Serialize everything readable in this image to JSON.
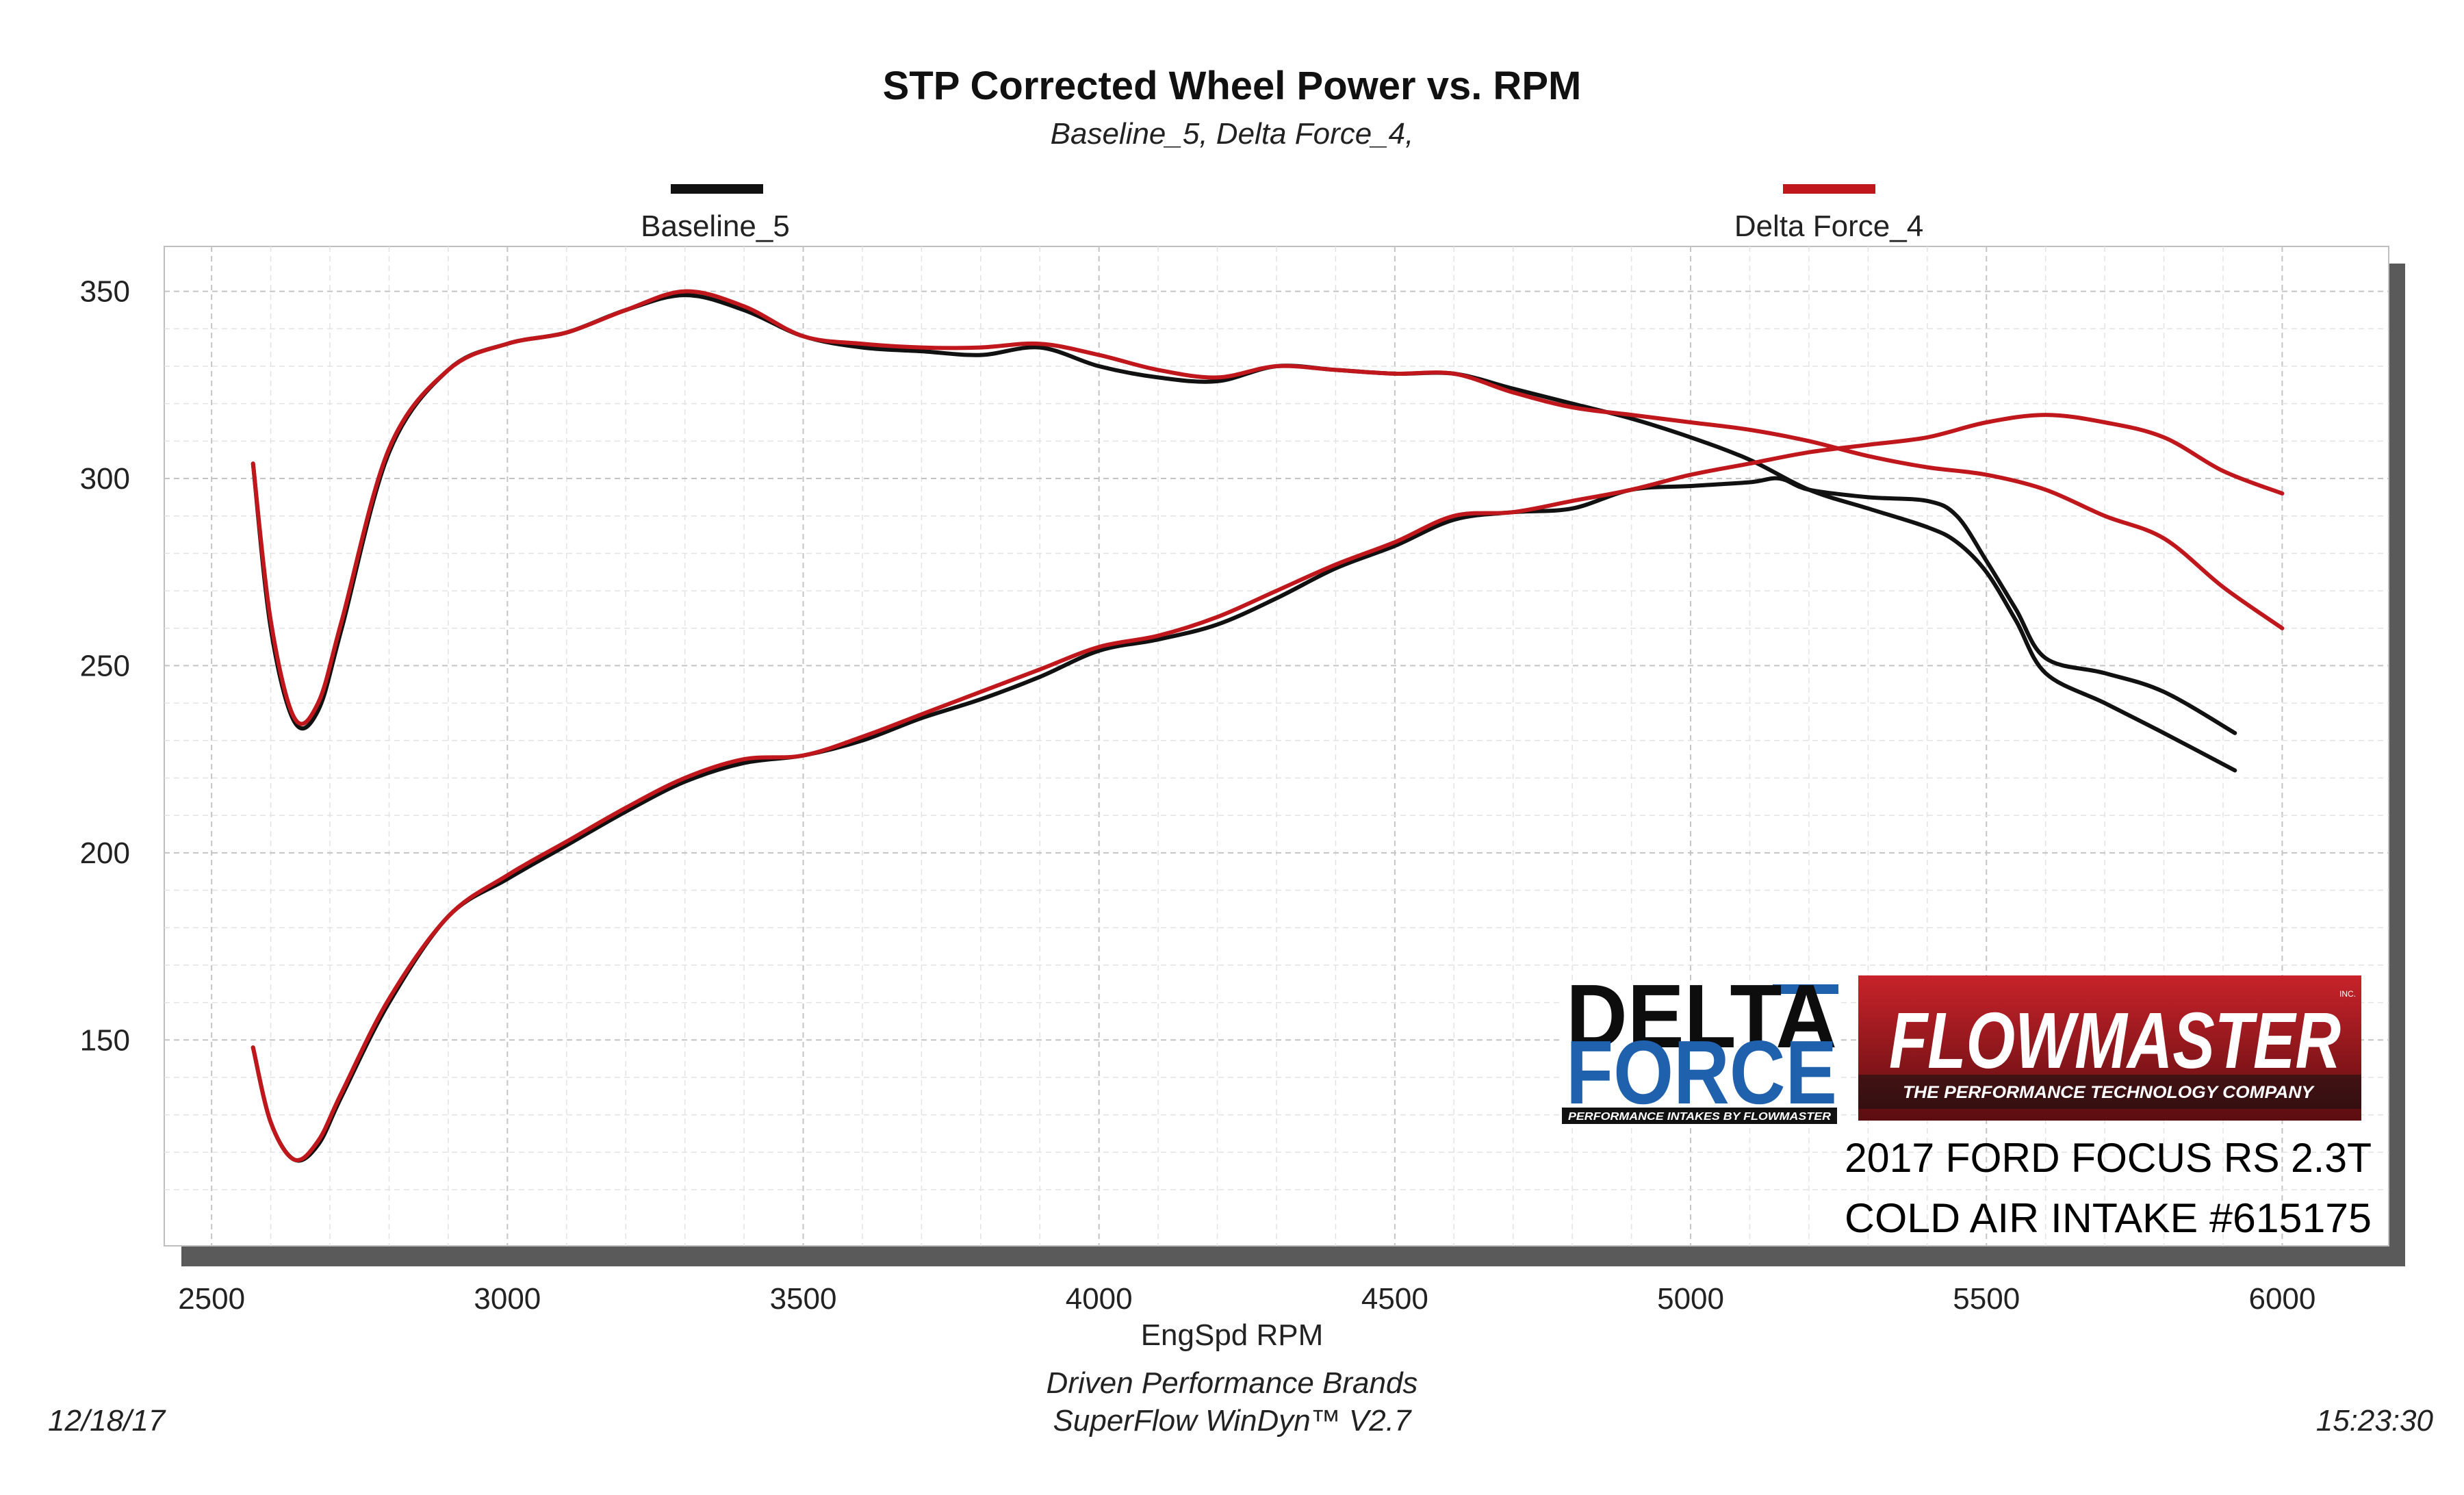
{
  "chart_data": {
    "type": "line",
    "title": "STP Corrected Wheel Power vs. RPM",
    "subtitle": "Baseline_5, Delta Force_4,",
    "xlabel": "EngSpd  RPM",
    "ylabel": "",
    "xlim": [
      2500,
      6000
    ],
    "ylim": [
      100,
      350
    ],
    "xticks": [
      "2500",
      "3000",
      "3500",
      "4000",
      "4500",
      "5000",
      "5500",
      "6000"
    ],
    "yticks": [
      "150",
      "200",
      "250",
      "300",
      "350"
    ],
    "grid": true,
    "legend_position": "top",
    "colors": {
      "Baseline_5": "#111111",
      "Delta Force_4": "#c0171d"
    },
    "series": [
      {
        "name": "Baseline_5",
        "curve": "power-rising",
        "color": "#111111",
        "x": [
          2570,
          2600,
          2640,
          2680,
          2720,
          2800,
          2900,
          3000,
          3100,
          3200,
          3300,
          3400,
          3500,
          3600,
          3700,
          3800,
          3900,
          4000,
          4100,
          4200,
          4300,
          4400,
          4500,
          4600,
          4700,
          4800,
          4900,
          5000,
          5100,
          5150,
          5200,
          5300,
          5400,
          5450,
          5500,
          5550,
          5600,
          5700,
          5800,
          5920
        ],
        "y": [
          148,
          128,
          118,
          122,
          135,
          160,
          183,
          193,
          202,
          211,
          219,
          224,
          226,
          230,
          236,
          241,
          247,
          254,
          257,
          261,
          268,
          276,
          282,
          289,
          291,
          292,
          297,
          298,
          299,
          300,
          297,
          295,
          294,
          290,
          278,
          265,
          252,
          248,
          243,
          232
        ]
      },
      {
        "name": "Baseline_5",
        "curve": "torque",
        "color": "#111111",
        "x": [
          2570,
          2600,
          2640,
          2680,
          2720,
          2800,
          2900,
          3000,
          3100,
          3200,
          3300,
          3400,
          3500,
          3600,
          3700,
          3800,
          3900,
          4000,
          4100,
          4200,
          4300,
          4400,
          4500,
          4600,
          4700,
          4800,
          4900,
          5000,
          5100,
          5200,
          5300,
          5400,
          5450,
          5500,
          5550,
          5600,
          5700,
          5800,
          5920
        ],
        "y": [
          304,
          260,
          235,
          238,
          260,
          307,
          329,
          336,
          339,
          345,
          349,
          345,
          338,
          335,
          334,
          333,
          335,
          330,
          327,
          326,
          330,
          329,
          328,
          328,
          324,
          320,
          316,
          311,
          305,
          297,
          292,
          287,
          283,
          275,
          262,
          248,
          240,
          232,
          222
        ]
      },
      {
        "name": "Delta Force_4",
        "curve": "power-rising",
        "color": "#c0171d",
        "x": [
          2570,
          2600,
          2640,
          2680,
          2720,
          2800,
          2900,
          3000,
          3100,
          3200,
          3300,
          3400,
          3500,
          3600,
          3700,
          3800,
          3900,
          4000,
          4100,
          4200,
          4300,
          4400,
          4500,
          4600,
          4700,
          4800,
          4900,
          5000,
          5100,
          5200,
          5300,
          5400,
          5500,
          5600,
          5700,
          5800,
          5900,
          6000
        ],
        "y": [
          148,
          128,
          118,
          123,
          136,
          161,
          183,
          194,
          203,
          212,
          220,
          225,
          226,
          231,
          237,
          243,
          249,
          255,
          258,
          263,
          270,
          277,
          283,
          290,
          291,
          294,
          297,
          301,
          304,
          307,
          309,
          311,
          315,
          317,
          315,
          311,
          302,
          296
        ]
      },
      {
        "name": "Delta Force_4",
        "curve": "torque",
        "color": "#c0171d",
        "x": [
          2570,
          2600,
          2640,
          2680,
          2720,
          2800,
          2900,
          3000,
          3100,
          3200,
          3300,
          3400,
          3500,
          3600,
          3700,
          3800,
          3900,
          4000,
          4100,
          4200,
          4300,
          4400,
          4500,
          4600,
          4700,
          4800,
          4900,
          5000,
          5100,
          5200,
          5300,
          5400,
          5500,
          5600,
          5700,
          5800,
          5900,
          6000
        ],
        "y": [
          304,
          262,
          236,
          240,
          262,
          308,
          329,
          336,
          339,
          345,
          350,
          346,
          338,
          336,
          335,
          335,
          336,
          333,
          329,
          327,
          330,
          329,
          328,
          328,
          323,
          319,
          317,
          315,
          313,
          310,
          306,
          303,
          301,
          297,
          290,
          284,
          271,
          260
        ]
      }
    ]
  },
  "footer": {
    "date": "12/18/17",
    "time": "15:23:30",
    "company": "Driven Performance Brands",
    "software": "SuperFlow WinDyn™  V2.7"
  },
  "logos": {
    "delta_force": {
      "line1": "DELTA",
      "line2": "FORCE",
      "tagline": "PERFORMANCE INTAKES BY FLOWMASTER"
    },
    "flowmaster": {
      "name": "FLOWMASTER",
      "tagline": "THE PERFORMANCE TECHNOLOGY COMPANY",
      "mark": "INC."
    }
  },
  "caption": {
    "line1": "2017 FORD FOCUS RS 2.3T",
    "line2": "COLD AIR INTAKE #615175"
  }
}
